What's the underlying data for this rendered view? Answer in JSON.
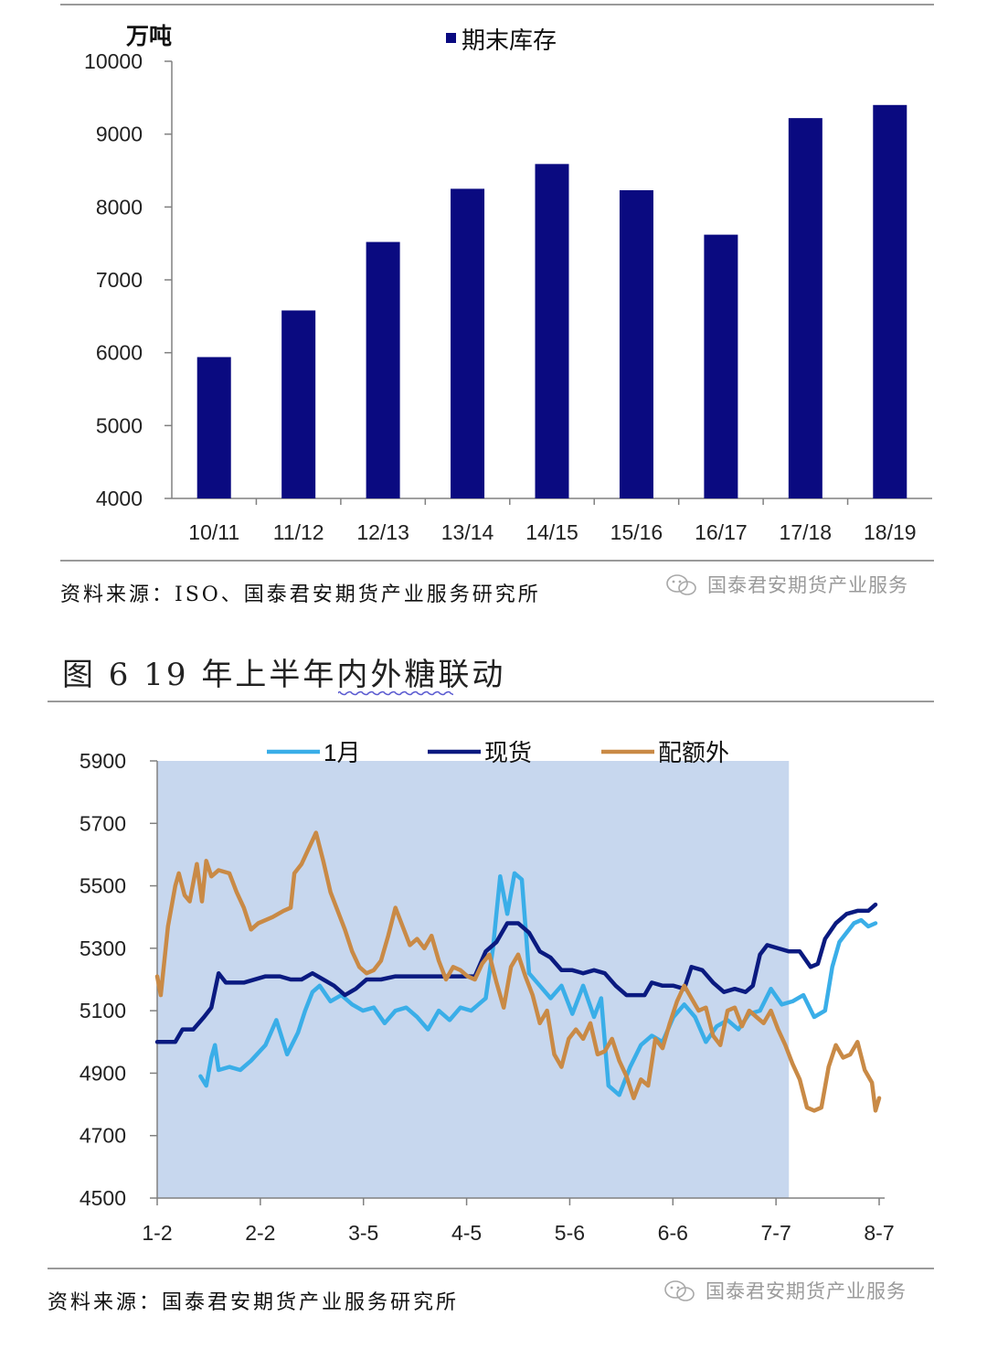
{
  "chart_data": [
    {
      "type": "bar",
      "unit_label": "万吨",
      "legend": [
        "期末库存"
      ],
      "legend_placement": "top-center",
      "categories": [
        "10/11",
        "11/12",
        "12/13",
        "13/14",
        "14/15",
        "15/16",
        "16/17",
        "17/18",
        "18/19"
      ],
      "series": [
        {
          "name": "期末库存",
          "values": [
            5940,
            6580,
            7520,
            8250,
            8590,
            8230,
            7620,
            9220,
            9400
          ]
        }
      ],
      "ylim": [
        4000,
        10000
      ],
      "yticks": [
        "4000",
        "5000",
        "6000",
        "7000",
        "8000",
        "9000",
        "10000"
      ],
      "grid": false,
      "colors": {
        "bar": "#0a0a80"
      }
    },
    {
      "type": "line",
      "legend_placement": "top-center",
      "x_ticks": [
        "1-2",
        "2-2",
        "3-5",
        "4-5",
        "5-6",
        "6-6",
        "7-7",
        "8-7"
      ],
      "ylim": [
        4500,
        5900
      ],
      "yticks": [
        "4500",
        "4700",
        "4900",
        "5100",
        "5300",
        "5500",
        "5700",
        "5900"
      ],
      "shaded_region_x": [
        0,
        0.875
      ],
      "grid": false,
      "series": [
        {
          "name": "1月",
          "color": "#3aaee8",
          "points": [
            [
              0.06,
              4890
            ],
            [
              0.068,
              4860
            ],
            [
              0.075,
              4950
            ],
            [
              0.08,
              4990
            ],
            [
              0.085,
              4910
            ],
            [
              0.1,
              4920
            ],
            [
              0.115,
              4910
            ],
            [
              0.13,
              4940
            ],
            [
              0.15,
              4990
            ],
            [
              0.165,
              5070
            ],
            [
              0.18,
              4960
            ],
            [
              0.195,
              5030
            ],
            [
              0.205,
              5100
            ],
            [
              0.215,
              5160
            ],
            [
              0.225,
              5180
            ],
            [
              0.24,
              5130
            ],
            [
              0.255,
              5150
            ],
            [
              0.27,
              5120
            ],
            [
              0.285,
              5100
            ],
            [
              0.3,
              5110
            ],
            [
              0.315,
              5060
            ],
            [
              0.33,
              5100
            ],
            [
              0.345,
              5110
            ],
            [
              0.36,
              5080
            ],
            [
              0.375,
              5040
            ],
            [
              0.39,
              5100
            ],
            [
              0.405,
              5070
            ],
            [
              0.42,
              5110
            ],
            [
              0.435,
              5100
            ],
            [
              0.445,
              5120
            ],
            [
              0.455,
              5140
            ],
            [
              0.465,
              5300
            ],
            [
              0.475,
              5530
            ],
            [
              0.485,
              5410
            ],
            [
              0.495,
              5540
            ],
            [
              0.505,
              5520
            ],
            [
              0.515,
              5220
            ],
            [
              0.53,
              5180
            ],
            [
              0.545,
              5140
            ],
            [
              0.56,
              5180
            ],
            [
              0.575,
              5090
            ],
            [
              0.59,
              5180
            ],
            [
              0.605,
              5080
            ],
            [
              0.615,
              5140
            ],
            [
              0.625,
              4860
            ],
            [
              0.64,
              4830
            ],
            [
              0.655,
              4920
            ],
            [
              0.67,
              4990
            ],
            [
              0.685,
              5020
            ],
            [
              0.7,
              5000
            ],
            [
              0.715,
              5080
            ],
            [
              0.73,
              5120
            ],
            [
              0.745,
              5080
            ],
            [
              0.76,
              5000
            ],
            [
              0.775,
              5050
            ],
            [
              0.79,
              5070
            ],
            [
              0.805,
              5040
            ],
            [
              0.82,
              5090
            ],
            [
              0.835,
              5100
            ],
            [
              0.85,
              5170
            ],
            [
              0.865,
              5120
            ],
            [
              0.88,
              5130
            ],
            [
              0.895,
              5150
            ],
            [
              0.91,
              5080
            ],
            [
              0.925,
              5100
            ],
            [
              0.935,
              5240
            ],
            [
              0.945,
              5320
            ],
            [
              0.955,
              5350
            ],
            [
              0.965,
              5380
            ],
            [
              0.975,
              5390
            ],
            [
              0.985,
              5370
            ],
            [
              0.995,
              5380
            ]
          ]
        },
        {
          "name": "现货",
          "color": "#0a1a80",
          "points": [
            [
              0.0,
              5000
            ],
            [
              0.025,
              5000
            ],
            [
              0.035,
              5040
            ],
            [
              0.05,
              5040
            ],
            [
              0.065,
              5080
            ],
            [
              0.075,
              5110
            ],
            [
              0.085,
              5220
            ],
            [
              0.095,
              5190
            ],
            [
              0.12,
              5190
            ],
            [
              0.15,
              5210
            ],
            [
              0.17,
              5210
            ],
            [
              0.185,
              5200
            ],
            [
              0.2,
              5200
            ],
            [
              0.215,
              5220
            ],
            [
              0.23,
              5200
            ],
            [
              0.245,
              5180
            ],
            [
              0.26,
              5150
            ],
            [
              0.275,
              5170
            ],
            [
              0.29,
              5200
            ],
            [
              0.31,
              5200
            ],
            [
              0.33,
              5210
            ],
            [
              0.36,
              5210
            ],
            [
              0.39,
              5210
            ],
            [
              0.42,
              5210
            ],
            [
              0.44,
              5210
            ],
            [
              0.455,
              5290
            ],
            [
              0.47,
              5320
            ],
            [
              0.485,
              5380
            ],
            [
              0.5,
              5380
            ],
            [
              0.515,
              5350
            ],
            [
              0.53,
              5290
            ],
            [
              0.545,
              5270
            ],
            [
              0.56,
              5230
            ],
            [
              0.575,
              5230
            ],
            [
              0.59,
              5220
            ],
            [
              0.605,
              5230
            ],
            [
              0.62,
              5220
            ],
            [
              0.635,
              5180
            ],
            [
              0.65,
              5150
            ],
            [
              0.665,
              5150
            ],
            [
              0.675,
              5150
            ],
            [
              0.685,
              5190
            ],
            [
              0.7,
              5180
            ],
            [
              0.715,
              5180
            ],
            [
              0.73,
              5170
            ],
            [
              0.74,
              5240
            ],
            [
              0.755,
              5230
            ],
            [
              0.77,
              5190
            ],
            [
              0.785,
              5160
            ],
            [
              0.8,
              5170
            ],
            [
              0.815,
              5160
            ],
            [
              0.825,
              5180
            ],
            [
              0.835,
              5280
            ],
            [
              0.845,
              5310
            ],
            [
              0.86,
              5300
            ],
            [
              0.875,
              5290
            ],
            [
              0.89,
              5290
            ],
            [
              0.905,
              5240
            ],
            [
              0.915,
              5250
            ],
            [
              0.925,
              5330
            ],
            [
              0.94,
              5380
            ],
            [
              0.955,
              5410
            ],
            [
              0.97,
              5420
            ],
            [
              0.985,
              5420
            ],
            [
              0.995,
              5440
            ]
          ]
        },
        {
          "name": "配额外",
          "color": "#c98a46",
          "points": [
            [
              0.0,
              5210
            ],
            [
              0.005,
              5150
            ],
            [
              0.015,
              5370
            ],
            [
              0.025,
              5500
            ],
            [
              0.03,
              5540
            ],
            [
              0.038,
              5470
            ],
            [
              0.045,
              5450
            ],
            [
              0.055,
              5570
            ],
            [
              0.062,
              5450
            ],
            [
              0.068,
              5580
            ],
            [
              0.075,
              5530
            ],
            [
              0.085,
              5550
            ],
            [
              0.1,
              5540
            ],
            [
              0.11,
              5480
            ],
            [
              0.12,
              5430
            ],
            [
              0.13,
              5360
            ],
            [
              0.14,
              5380
            ],
            [
              0.16,
              5400
            ],
            [
              0.175,
              5420
            ],
            [
              0.185,
              5430
            ],
            [
              0.19,
              5540
            ],
            [
              0.2,
              5570
            ],
            [
              0.21,
              5620
            ],
            [
              0.22,
              5670
            ],
            [
              0.23,
              5580
            ],
            [
              0.24,
              5480
            ],
            [
              0.25,
              5420
            ],
            [
              0.26,
              5360
            ],
            [
              0.27,
              5290
            ],
            [
              0.28,
              5240
            ],
            [
              0.29,
              5220
            ],
            [
              0.3,
              5230
            ],
            [
              0.31,
              5260
            ],
            [
              0.32,
              5340
            ],
            [
              0.33,
              5430
            ],
            [
              0.34,
              5370
            ],
            [
              0.35,
              5310
            ],
            [
              0.36,
              5330
            ],
            [
              0.37,
              5300
            ],
            [
              0.38,
              5340
            ],
            [
              0.39,
              5260
            ],
            [
              0.4,
              5200
            ],
            [
              0.41,
              5240
            ],
            [
              0.42,
              5230
            ],
            [
              0.43,
              5210
            ],
            [
              0.44,
              5200
            ],
            [
              0.45,
              5250
            ],
            [
              0.46,
              5280
            ],
            [
              0.47,
              5190
            ],
            [
              0.48,
              5110
            ],
            [
              0.49,
              5240
            ],
            [
              0.5,
              5280
            ],
            [
              0.51,
              5210
            ],
            [
              0.52,
              5150
            ],
            [
              0.53,
              5060
            ],
            [
              0.54,
              5100
            ],
            [
              0.55,
              4960
            ],
            [
              0.56,
              4920
            ],
            [
              0.57,
              5010
            ],
            [
              0.58,
              5040
            ],
            [
              0.59,
              5010
            ],
            [
              0.6,
              5060
            ],
            [
              0.61,
              4960
            ],
            [
              0.62,
              4970
            ],
            [
              0.63,
              5010
            ],
            [
              0.64,
              4940
            ],
            [
              0.65,
              4890
            ],
            [
              0.66,
              4820
            ],
            [
              0.67,
              4880
            ],
            [
              0.68,
              4860
            ],
            [
              0.69,
              5010
            ],
            [
              0.7,
              4980
            ],
            [
              0.71,
              5060
            ],
            [
              0.72,
              5130
            ],
            [
              0.73,
              5180
            ],
            [
              0.74,
              5140
            ],
            [
              0.75,
              5100
            ],
            [
              0.76,
              5110
            ],
            [
              0.77,
              5020
            ],
            [
              0.78,
              4990
            ],
            [
              0.79,
              5100
            ],
            [
              0.8,
              5110
            ],
            [
              0.81,
              5050
            ],
            [
              0.82,
              5100
            ],
            [
              0.83,
              5080
            ],
            [
              0.84,
              5060
            ],
            [
              0.85,
              5100
            ],
            [
              0.86,
              5040
            ],
            [
              0.87,
              4990
            ],
            [
              0.88,
              4930
            ],
            [
              0.89,
              4880
            ],
            [
              0.9,
              4790
            ],
            [
              0.91,
              4780
            ],
            [
              0.92,
              4790
            ],
            [
              0.93,
              4920
            ],
            [
              0.94,
              4990
            ],
            [
              0.95,
              4950
            ],
            [
              0.96,
              4960
            ],
            [
              0.97,
              5000
            ],
            [
              0.98,
              4910
            ],
            [
              0.99,
              4870
            ],
            [
              0.995,
              4780
            ],
            [
              1.0,
              4820
            ]
          ]
        }
      ]
    }
  ],
  "figure6": {
    "title": "图 6  19 年上半年内外糖联动"
  },
  "sources": {
    "source1": "资料来源：ISO、国泰君安期货产业服务研究所",
    "source2": "资料来源：国泰君安期货产业服务研究所"
  },
  "watermark": "国泰君安期货产业服务"
}
